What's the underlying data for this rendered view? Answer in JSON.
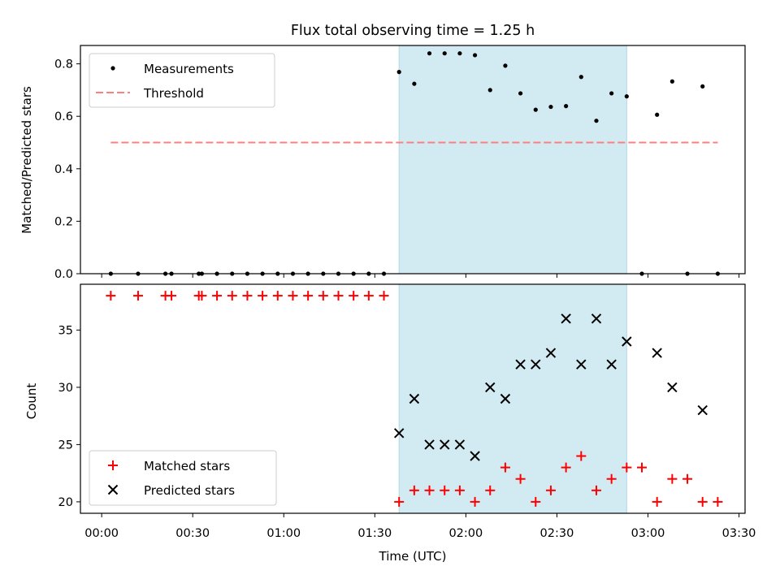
{
  "chart_data": [
    {
      "type": "scatter",
      "title": "Flux total observing time = 1.25 h",
      "xlabel": "",
      "ylabel": "Matched/Predicted stars",
      "ylim": [
        0,
        0.87
      ],
      "yticks": [
        "0.0",
        "0.2",
        "0.4",
        "0.6",
        "0.8"
      ],
      "ytick_values": [
        0,
        0.2,
        0.4,
        0.6,
        0.8
      ],
      "shaded_span": [
        "01:38",
        "02:53"
      ],
      "shade_color": "#add8e6",
      "legend_position": "upper left",
      "series": [
        {
          "name": "Measurements",
          "marker": "dot",
          "color": "#000000",
          "points": [
            [
              "00:03",
              0.0
            ],
            [
              "00:12",
              0.0
            ],
            [
              "00:21",
              0.0
            ],
            [
              "00:23",
              0.0
            ],
            [
              "00:32",
              0.0
            ],
            [
              "00:33",
              0.0
            ],
            [
              "00:38",
              0.0
            ],
            [
              "00:43",
              0.0
            ],
            [
              "00:48",
              0.0
            ],
            [
              "00:53",
              0.0
            ],
            [
              "00:58",
              0.0
            ],
            [
              "01:03",
              0.0
            ],
            [
              "01:08",
              0.0
            ],
            [
              "01:13",
              0.0
            ],
            [
              "01:18",
              0.0
            ],
            [
              "01:23",
              0.0
            ],
            [
              "01:28",
              0.0
            ],
            [
              "01:33",
              0.0
            ],
            [
              "01:38",
              0.769
            ],
            [
              "01:43",
              0.724
            ],
            [
              "01:48",
              0.84
            ],
            [
              "01:53",
              0.84
            ],
            [
              "01:58",
              0.84
            ],
            [
              "02:03",
              0.833
            ],
            [
              "02:08",
              0.7
            ],
            [
              "02:13",
              0.793
            ],
            [
              "02:18",
              0.6875
            ],
            [
              "02:23",
              0.625
            ],
            [
              "02:28",
              0.636
            ],
            [
              "02:33",
              0.639
            ],
            [
              "02:38",
              0.75
            ],
            [
              "02:43",
              0.583
            ],
            [
              "02:48",
              0.6875
            ],
            [
              "02:53",
              0.676
            ],
            [
              "02:58",
              0.0
            ],
            [
              "03:03",
              0.606
            ],
            [
              "03:08",
              0.733
            ],
            [
              "03:13",
              0.0
            ],
            [
              "03:18",
              0.714
            ],
            [
              "03:23",
              0.0
            ]
          ]
        },
        {
          "name": "Threshold",
          "marker": "dashed-line",
          "color": "#ff7f7f",
          "points": [
            [
              "00:03",
              0.5
            ],
            [
              "03:23",
              0.5
            ]
          ]
        }
      ]
    },
    {
      "type": "scatter",
      "title": "",
      "xlabel": "Time (UTC)",
      "ylabel": "Count",
      "ylim": [
        19,
        39
      ],
      "yticks": [
        "20",
        "25",
        "30",
        "35"
      ],
      "ytick_values": [
        20,
        25,
        30,
        35
      ],
      "xlim": [
        "-00:07",
        "03:32"
      ],
      "xticks": [
        "00:00",
        "00:30",
        "01:00",
        "01:30",
        "02:00",
        "02:30",
        "03:00",
        "03:30"
      ],
      "shaded_span": [
        "01:38",
        "02:53"
      ],
      "shade_color": "#add8e6",
      "legend_position": "lower left",
      "series": [
        {
          "name": "Matched stars",
          "marker": "plus",
          "color": "#ff0000",
          "points": [
            [
              "00:03",
              38
            ],
            [
              "00:12",
              38
            ],
            [
              "00:21",
              38
            ],
            [
              "00:23",
              38
            ],
            [
              "00:32",
              38
            ],
            [
              "00:33",
              38
            ],
            [
              "00:38",
              38
            ],
            [
              "00:43",
              38
            ],
            [
              "00:48",
              38
            ],
            [
              "00:53",
              38
            ],
            [
              "00:58",
              38
            ],
            [
              "01:03",
              38
            ],
            [
              "01:08",
              38
            ],
            [
              "01:13",
              38
            ],
            [
              "01:18",
              38
            ],
            [
              "01:23",
              38
            ],
            [
              "01:28",
              38
            ],
            [
              "01:33",
              38
            ],
            [
              "01:38",
              20
            ],
            [
              "01:43",
              21
            ],
            [
              "01:48",
              21
            ],
            [
              "01:53",
              21
            ],
            [
              "01:58",
              21
            ],
            [
              "02:03",
              20
            ],
            [
              "02:08",
              21
            ],
            [
              "02:13",
              23
            ],
            [
              "02:18",
              22
            ],
            [
              "02:23",
              20
            ],
            [
              "02:28",
              21
            ],
            [
              "02:33",
              23
            ],
            [
              "02:38",
              24
            ],
            [
              "02:43",
              21
            ],
            [
              "02:48",
              22
            ],
            [
              "02:53",
              23
            ],
            [
              "02:58",
              23
            ],
            [
              "03:03",
              20
            ],
            [
              "03:08",
              22
            ],
            [
              "03:13",
              22
            ],
            [
              "03:18",
              20
            ],
            [
              "03:23",
              20
            ]
          ]
        },
        {
          "name": "Predicted stars",
          "marker": "x",
          "color": "#000000",
          "points": [
            [
              "01:38",
              26
            ],
            [
              "01:43",
              29
            ],
            [
              "01:48",
              25
            ],
            [
              "01:53",
              25
            ],
            [
              "01:58",
              25
            ],
            [
              "02:03",
              24
            ],
            [
              "02:08",
              30
            ],
            [
              "02:13",
              29
            ],
            [
              "02:18",
              32
            ],
            [
              "02:23",
              32
            ],
            [
              "02:28",
              33
            ],
            [
              "02:33",
              36
            ],
            [
              "02:38",
              32
            ],
            [
              "02:43",
              36
            ],
            [
              "02:48",
              32
            ],
            [
              "02:53",
              34
            ],
            [
              "03:03",
              33
            ],
            [
              "03:08",
              30
            ],
            [
              "03:18",
              28
            ]
          ]
        }
      ]
    }
  ]
}
